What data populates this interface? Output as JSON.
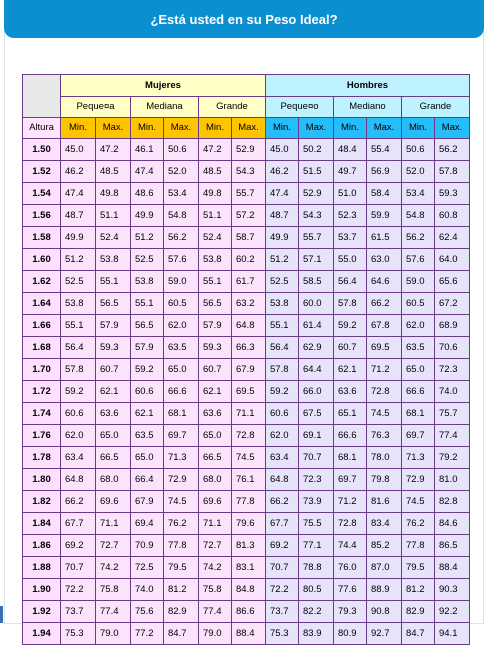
{
  "header": {
    "title": "¿Está usted en su Peso Ideal?"
  },
  "groups": {
    "women": "Mujeres",
    "men": "Hombres"
  },
  "women_sizes": [
    "Peque¤a",
    "Mediana",
    "Grande"
  ],
  "men_sizes": [
    "Peque¤o",
    "Mediano",
    "Grande"
  ],
  "col_height": "Altura",
  "col_min": "Min.",
  "col_max": "Max.",
  "rows": [
    {
      "h": "1.50",
      "v": [
        "45.0",
        "47.2",
        "46.1",
        "50.6",
        "47.2",
        "52.9",
        "45.0",
        "50.2",
        "48.4",
        "55.4",
        "50.6",
        "56.2"
      ]
    },
    {
      "h": "1.52",
      "v": [
        "46.2",
        "48.5",
        "47.4",
        "52.0",
        "48.5",
        "54.3",
        "46.2",
        "51.5",
        "49.7",
        "56.9",
        "52.0",
        "57.8"
      ]
    },
    {
      "h": "1.54",
      "v": [
        "47.4",
        "49.8",
        "48.6",
        "53.4",
        "49.8",
        "55.7",
        "47.4",
        "52.9",
        "51.0",
        "58.4",
        "53.4",
        "59.3"
      ]
    },
    {
      "h": "1.56",
      "v": [
        "48.7",
        "51.1",
        "49.9",
        "54.8",
        "51.1",
        "57.2",
        "48.7",
        "54.3",
        "52.3",
        "59.9",
        "54.8",
        "60.8"
      ]
    },
    {
      "h": "1.58",
      "v": [
        "49.9",
        "52.4",
        "51.2",
        "56.2",
        "52.4",
        "58.7",
        "49.9",
        "55.7",
        "53.7",
        "61.5",
        "56.2",
        "62.4"
      ]
    },
    {
      "h": "1.60",
      "v": [
        "51.2",
        "53.8",
        "52.5",
        "57.6",
        "53.8",
        "60.2",
        "51.2",
        "57.1",
        "55.0",
        "63.0",
        "57.6",
        "64.0"
      ]
    },
    {
      "h": "1.62",
      "v": [
        "52.5",
        "55.1",
        "53.8",
        "59.0",
        "55.1",
        "61.7",
        "52.5",
        "58.5",
        "56.4",
        "64.6",
        "59.0",
        "65.6"
      ]
    },
    {
      "h": "1.64",
      "v": [
        "53.8",
        "56.5",
        "55.1",
        "60.5",
        "56.5",
        "63.2",
        "53.8",
        "60.0",
        "57.8",
        "66.2",
        "60.5",
        "67.2"
      ]
    },
    {
      "h": "1.66",
      "v": [
        "55.1",
        "57.9",
        "56.5",
        "62.0",
        "57.9",
        "64.8",
        "55.1",
        "61.4",
        "59.2",
        "67.8",
        "62.0",
        "68.9"
      ]
    },
    {
      "h": "1.68",
      "v": [
        "56.4",
        "59.3",
        "57.9",
        "63.5",
        "59.3",
        "66.3",
        "56.4",
        "62.9",
        "60.7",
        "69.5",
        "63.5",
        "70.6"
      ]
    },
    {
      "h": "1.70",
      "v": [
        "57.8",
        "60.7",
        "59.2",
        "65.0",
        "60.7",
        "67.9",
        "57.8",
        "64.4",
        "62.1",
        "71.2",
        "65.0",
        "72.3"
      ]
    },
    {
      "h": "1.72",
      "v": [
        "59.2",
        "62.1",
        "60.6",
        "66.6",
        "62.1",
        "69.5",
        "59.2",
        "66.0",
        "63.6",
        "72.8",
        "66.6",
        "74.0"
      ]
    },
    {
      "h": "1.74",
      "v": [
        "60.6",
        "63.6",
        "62.1",
        "68.1",
        "63.6",
        "71.1",
        "60.6",
        "67.5",
        "65.1",
        "74.5",
        "68.1",
        "75.7"
      ]
    },
    {
      "h": "1.76",
      "v": [
        "62.0",
        "65.0",
        "63.5",
        "69.7",
        "65.0",
        "72.8",
        "62.0",
        "69.1",
        "66.6",
        "76.3",
        "69.7",
        "77.4"
      ]
    },
    {
      "h": "1.78",
      "v": [
        "63.4",
        "66.5",
        "65.0",
        "71.3",
        "66.5",
        "74.5",
        "63.4",
        "70.7",
        "68.1",
        "78.0",
        "71.3",
        "79.2"
      ]
    },
    {
      "h": "1.80",
      "v": [
        "64.8",
        "68.0",
        "66.4",
        "72.9",
        "68.0",
        "76.1",
        "64.8",
        "72.3",
        "69.7",
        "79.8",
        "72.9",
        "81.0"
      ]
    },
    {
      "h": "1.82",
      "v": [
        "66.2",
        "69.6",
        "67.9",
        "74.5",
        "69.6",
        "77.8",
        "66.2",
        "73.9",
        "71.2",
        "81.6",
        "74.5",
        "82.8"
      ]
    },
    {
      "h": "1.84",
      "v": [
        "67.7",
        "71.1",
        "69.4",
        "76.2",
        "71.1",
        "79.6",
        "67.7",
        "75.5",
        "72.8",
        "83.4",
        "76.2",
        "84.6"
      ]
    },
    {
      "h": "1.86",
      "v": [
        "69.2",
        "72.7",
        "70.9",
        "77.8",
        "72.7",
        "81.3",
        "69.2",
        "77.1",
        "74.4",
        "85.2",
        "77.8",
        "86.5"
      ]
    },
    {
      "h": "1.88",
      "v": [
        "70.7",
        "74.2",
        "72.5",
        "79.5",
        "74.2",
        "83.1",
        "70.7",
        "78.8",
        "76.0",
        "87.0",
        "79.5",
        "88.4"
      ]
    },
    {
      "h": "1.90",
      "v": [
        "72.2",
        "75.8",
        "74.0",
        "81.2",
        "75.8",
        "84.8",
        "72.2",
        "80.5",
        "77.6",
        "88.9",
        "81.2",
        "90.3"
      ]
    },
    {
      "h": "1.92",
      "v": [
        "73.7",
        "77.4",
        "75.6",
        "82.9",
        "77.4",
        "86.6",
        "73.7",
        "82.2",
        "79.3",
        "90.8",
        "82.9",
        "92.2"
      ]
    },
    {
      "h": "1.94",
      "v": [
        "75.3",
        "79.0",
        "77.2",
        "84.7",
        "79.0",
        "88.4",
        "75.3",
        "83.9",
        "80.9",
        "92.7",
        "84.7",
        "94.1"
      ]
    }
  ]
}
